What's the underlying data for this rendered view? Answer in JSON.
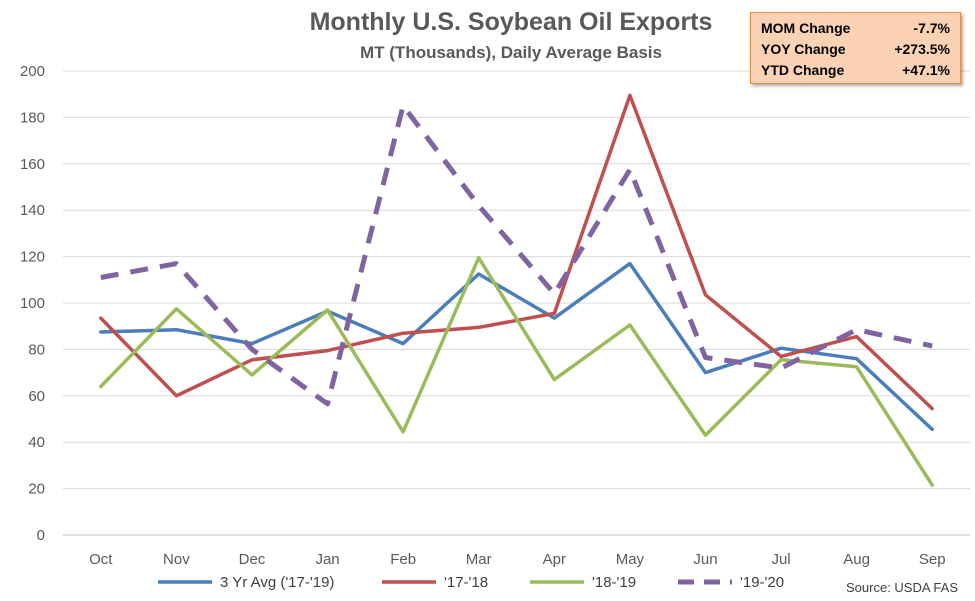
{
  "chart_data": {
    "type": "line",
    "title": "Monthly U.S. Soybean Oil Exports",
    "subtitle": "MT (Thousands), Daily Average Basis",
    "categories": [
      "Oct",
      "Nov",
      "Dec",
      "Jan",
      "Feb",
      "Mar",
      "Apr",
      "May",
      "Jun",
      "Jul",
      "Aug",
      "Sep"
    ],
    "ylim": [
      0,
      200
    ],
    "yticks": [
      0,
      20,
      40,
      60,
      80,
      100,
      120,
      140,
      160,
      180,
      200
    ],
    "grid": true,
    "legend_position": "bottom",
    "series": [
      {
        "name": "3 Yr Avg ('17-'19)",
        "color": "#4a7ebb",
        "dashed": false,
        "values": [
          87.5,
          88.5,
          82.5,
          96.5,
          82.5,
          112.5,
          93.5,
          117,
          70,
          80.5,
          76,
          45.5
        ]
      },
      {
        "name": "'17-'18",
        "color": "#c0504d",
        "dashed": false,
        "values": [
          93.5,
          60,
          75.5,
          79.5,
          87,
          89.5,
          95.5,
          189.5,
          103.5,
          77,
          85.5,
          54.5
        ]
      },
      {
        "name": "'18-'19",
        "color": "#9bbb59",
        "dashed": false,
        "values": [
          64,
          97.5,
          69,
          97,
          44.5,
          119.5,
          67,
          90.5,
          43,
          75.5,
          72.5,
          21.5
        ]
      },
      {
        "name": "'19-'20",
        "color": "#8064a2",
        "dashed": true,
        "values": [
          111,
          117,
          80,
          56.5,
          185,
          142,
          104,
          157.5,
          76.5,
          72,
          88.5,
          81.5
        ]
      }
    ],
    "source": "Source: USDA FAS"
  },
  "stats": [
    {
      "label": "MOM Change",
      "value": "-7.7%"
    },
    {
      "label": "YOY Change",
      "value": "+273.5%"
    },
    {
      "label": "YTD Change",
      "value": "+47.1%"
    }
  ],
  "colors": {
    "grid": "#d9d9d9",
    "axis": "#bfbfbf",
    "stats_fill": "#fbd3b4",
    "stats_border": "#ec8b3f"
  }
}
